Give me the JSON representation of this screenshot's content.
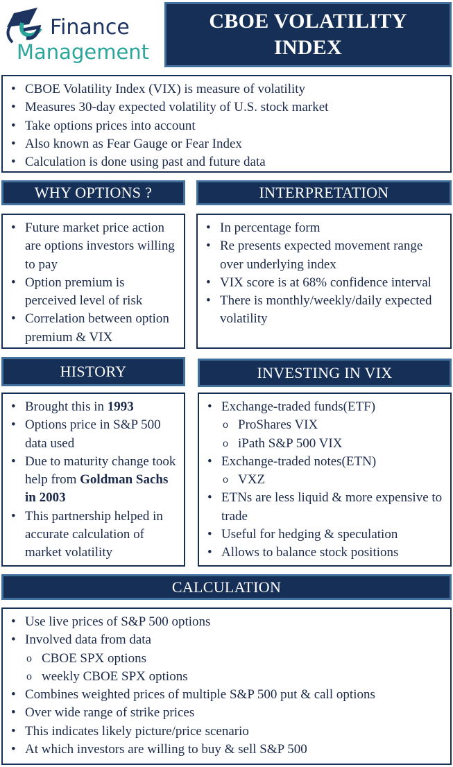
{
  "logo": {
    "line1": "Finance",
    "line2": "Management",
    "prefix": "e"
  },
  "title": "CBOE VOLATILITY INDEX",
  "colors": {
    "header_fill": "#162f56",
    "header_border": "#41709c",
    "text": "#1b2a4a",
    "logo_teal": "#2aa59a"
  },
  "intro": [
    "CBOE Volatility Index (VIX) is measure of volatility",
    "Measures 30-day expected volatility of U.S. stock market",
    "Take options prices into account",
    "Also known as Fear Gauge or Fear Index",
    "Calculation is done using past and future data"
  ],
  "why_options": {
    "heading": "WHY OPTIONS ?",
    "items": [
      "Future market price action are options investors willing to pay",
      "Option premium is perceived level of risk",
      "Correlation between option premium & VIX"
    ]
  },
  "interpretation": {
    "heading": "INTERPRETATION",
    "items": [
      "In percentage form",
      "Re presents expected movement range over underlying index",
      "VIX score is at 68% confidence interval",
      "There is monthly/weekly/daily expected volatility"
    ]
  },
  "history": {
    "heading": "HISTORY",
    "items": [
      {
        "text": "Brought this in ",
        "bold": "1993"
      },
      {
        "text": "Options price in S&P 500 data used"
      },
      {
        "text": "Due to maturity change took help from ",
        "bold": "Goldman Sachs in 2003"
      },
      {
        "text": "This partnership helped in accurate calculation of market volatility"
      }
    ]
  },
  "investing": {
    "heading": "INVESTING IN VIX",
    "items": [
      {
        "text": "Exchange-traded funds(ETF)"
      },
      {
        "text": "ProShares VIX",
        "sub": true
      },
      {
        "text": "iPath S&P 500 VIX",
        "sub": true
      },
      {
        "text": "Exchange-traded notes(ETN)"
      },
      {
        "text": "VXZ",
        "sub": true
      },
      {
        "text": "ETNs are less liquid & more expensive to trade"
      },
      {
        "text": "Useful for hedging & speculation"
      },
      {
        "text": "Allows to balance stock positions"
      }
    ]
  },
  "calculation": {
    "heading": "CALCULATION",
    "items": [
      {
        "text": "Use live prices of S&P 500 options"
      },
      {
        "text": "Involved data from data"
      },
      {
        "text": "CBOE SPX options",
        "sub": true
      },
      {
        "text": "weekly CBOE SPX options",
        "sub": true
      },
      {
        "text": "Combines weighted prices of multiple S&P 500 put & call options"
      },
      {
        "text": "Over wide range of strike prices"
      },
      {
        "text": "This indicates likely picture/price scenario"
      },
      {
        "text": "At which investors are willing to buy & sell S&P 500"
      }
    ]
  }
}
